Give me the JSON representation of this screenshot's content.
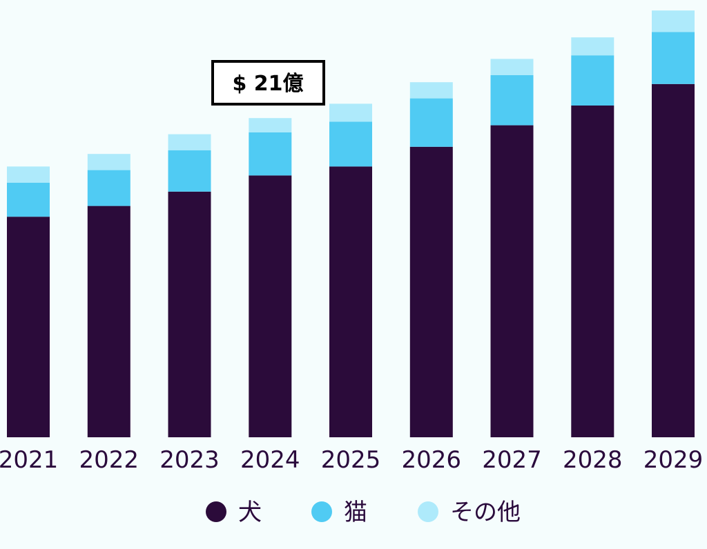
{
  "chart_data": {
    "type": "bar",
    "stacked": true,
    "categories": [
      "2021",
      "2022",
      "2023",
      "2024",
      "2025",
      "2026",
      "2027",
      "2028",
      "2029"
    ],
    "series": [
      {
        "name": "犬",
        "color": "#2b0b3a",
        "values": [
          12.3,
          12.9,
          13.7,
          14.6,
          15.1,
          16.2,
          17.4,
          18.5,
          19.7
        ]
      },
      {
        "name": "猫",
        "color": "#50cbf3",
        "values": [
          1.9,
          2.0,
          2.3,
          2.4,
          2.5,
          2.7,
          2.8,
          2.8,
          2.9
        ]
      },
      {
        "name": "その他",
        "color": "#aeeafb",
        "values": [
          0.9,
          0.9,
          0.9,
          0.8,
          1.0,
          0.9,
          0.9,
          1.0,
          1.2
        ]
      }
    ],
    "callout": {
      "text": "$ 21億"
    },
    "ylim": [
      0,
      24
    ],
    "legend_position": "bottom",
    "grid": false
  }
}
